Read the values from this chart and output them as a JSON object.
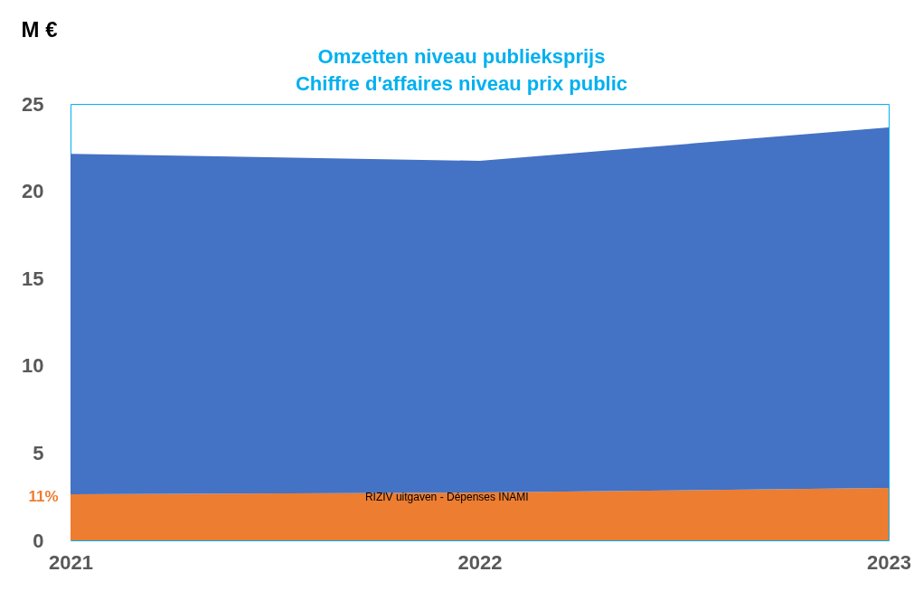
{
  "chart_data": {
    "type": "area",
    "title": [
      "Omzetten niveau publieksprijs",
      "Chiffre d'affaires niveau prix public"
    ],
    "ylabel": "M €",
    "categories": [
      "2021",
      "2022",
      "2023"
    ],
    "stacked": true,
    "series": [
      {
        "color": "#ed7d31",
        "values": [
          2.64,
          2.74,
          3.0
        ]
      },
      {
        "color": "#4472c4",
        "values": [
          19.5,
          19.0,
          20.65
        ]
      }
    ],
    "ylim": [
      0,
      25
    ],
    "yticks": [
      0,
      5,
      10,
      15,
      20,
      25
    ],
    "grid": false,
    "legend": false,
    "annotations": [
      "RIZIV uitgaven - Dépenses INAMI",
      "11%"
    ]
  }
}
